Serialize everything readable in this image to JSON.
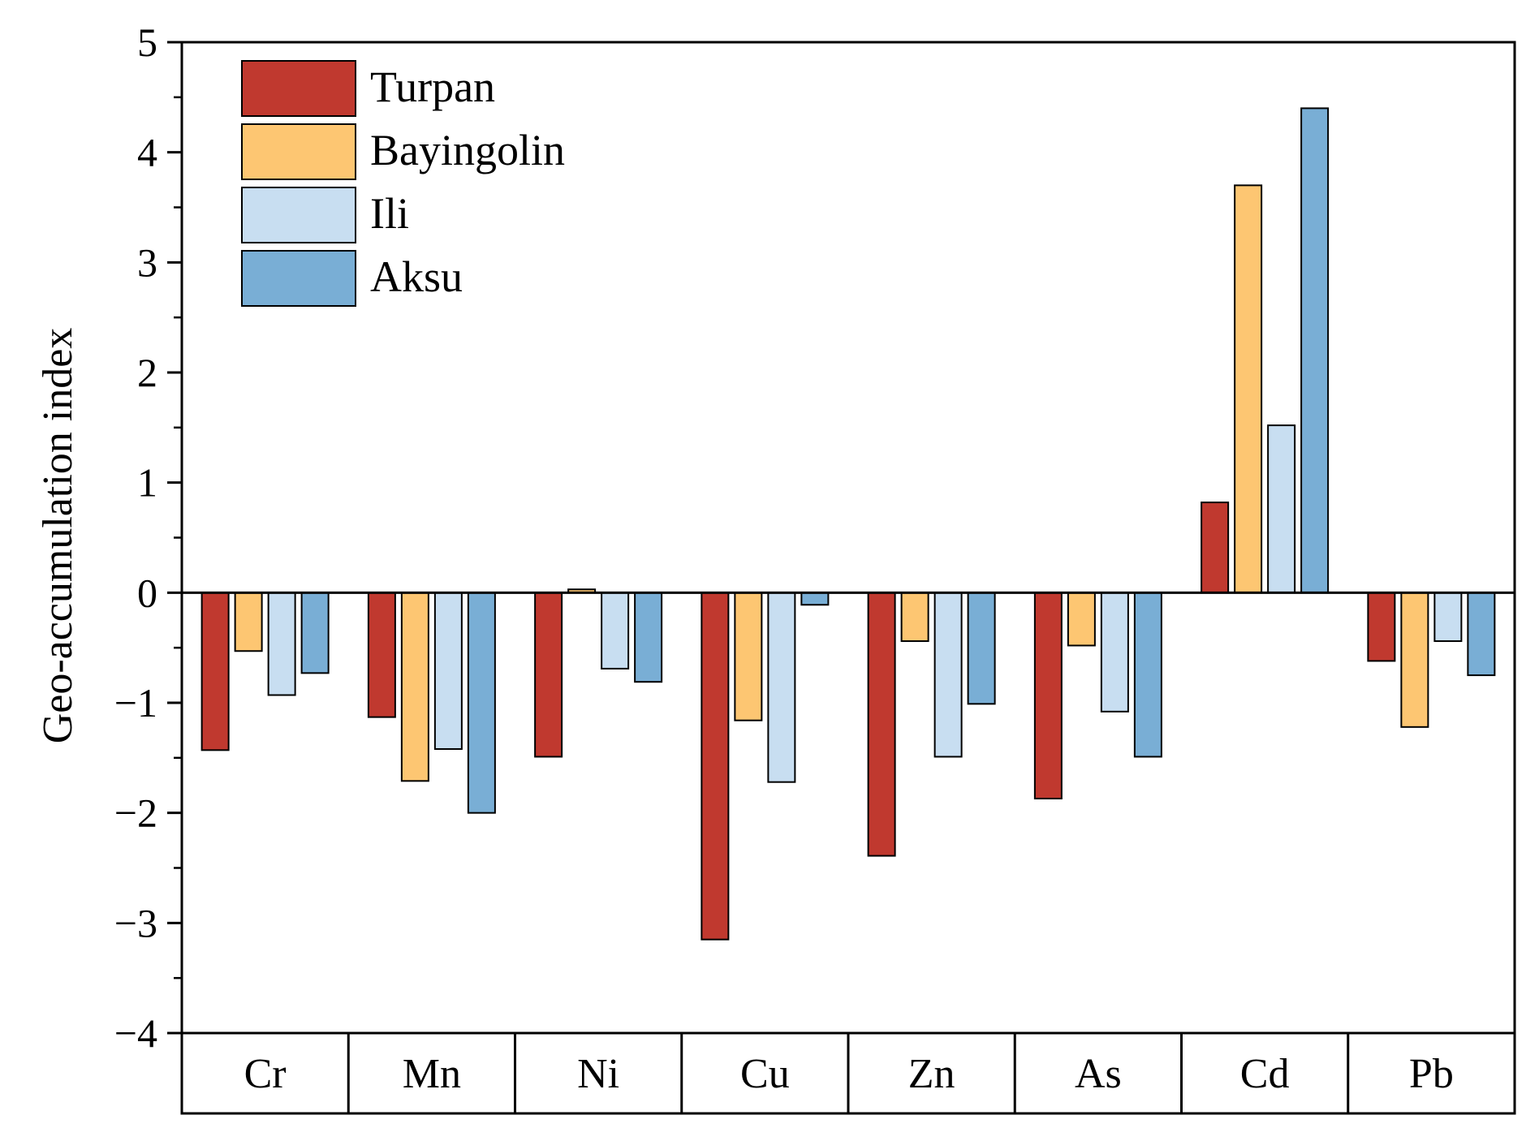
{
  "chart_data": {
    "type": "bar",
    "title": "",
    "xlabel": "",
    "ylabel": "Geo-accumulation index",
    "ylim": [
      -4,
      5
    ],
    "yticks": [
      5,
      4,
      3,
      2,
      1,
      0,
      -1,
      -2,
      -3,
      -4
    ],
    "ytick_labels": [
      "5",
      "4",
      "3",
      "2",
      "1",
      "0",
      "−1",
      "−2",
      "−3",
      "−4"
    ],
    "grid": false,
    "legend_position": "top-left",
    "categories": [
      "Cr",
      "Mn",
      "Ni",
      "Cu",
      "Zn",
      "As",
      "Cd",
      "Pb"
    ],
    "series": [
      {
        "name": "Turpan",
        "color": "#C0392F",
        "values": [
          -1.43,
          -1.13,
          -1.49,
          -3.15,
          -2.39,
          -1.87,
          0.82,
          -0.62
        ]
      },
      {
        "name": "Bayingolin",
        "color": "#FDC672",
        "values": [
          -0.53,
          -1.71,
          0.03,
          -1.16,
          -0.44,
          -0.48,
          3.7,
          -1.22
        ]
      },
      {
        "name": "Ili",
        "color": "#C8DEF1",
        "values": [
          -0.93,
          -1.42,
          -0.69,
          -1.72,
          -1.49,
          -1.08,
          1.52,
          -0.44
        ]
      },
      {
        "name": "Aksu",
        "color": "#79AED5",
        "values": [
          -0.73,
          -2.0,
          -0.81,
          -0.11,
          -1.01,
          -1.49,
          4.4,
          -0.75
        ]
      }
    ]
  }
}
